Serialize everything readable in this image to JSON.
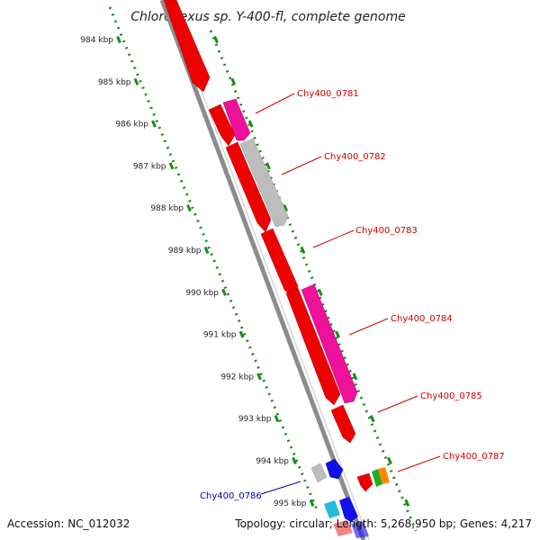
{
  "title": "Chloroflexus sp. Y-400-fl, complete genome",
  "footer": {
    "accession": "Accession: NC_012032",
    "summary": "Topology: circular; Length: 5,268,950 bp; Genes: 4,217"
  },
  "kbp_ticks": [
    "984 kbp",
    "985 kbp",
    "986 kbp",
    "987 kbp",
    "988 kbp",
    "989 kbp",
    "990 kbp",
    "991 kbp",
    "992 kbp",
    "993 kbp",
    "994 kbp",
    "995 kbp"
  ],
  "gene_labels": [
    {
      "text": "Chy400_0781",
      "color": "#cc0000"
    },
    {
      "text": "Chy400_0782",
      "color": "#cc0000"
    },
    {
      "text": "Chy400_0783",
      "color": "#cc0000"
    },
    {
      "text": "Chy400_0784",
      "color": "#cc0000"
    },
    {
      "text": "Chy400_0785",
      "color": "#cc0000"
    },
    {
      "text": "Chy400_0787",
      "color": "#cc0000"
    },
    {
      "text": "Chy400_0786",
      "color": "#0000aa"
    }
  ],
  "colors": {
    "backbone": "#8c8c8c",
    "scale_dots": "#1a8a1a",
    "gene_red": "#ee0000",
    "gene_pink": "#ee1199",
    "gene_gray": "#bdbdbd",
    "gene_blue": "#1010ee",
    "gene_cyan": "#22bbdd",
    "gene_green": "#22aa22",
    "gene_orange": "#ff8800"
  }
}
